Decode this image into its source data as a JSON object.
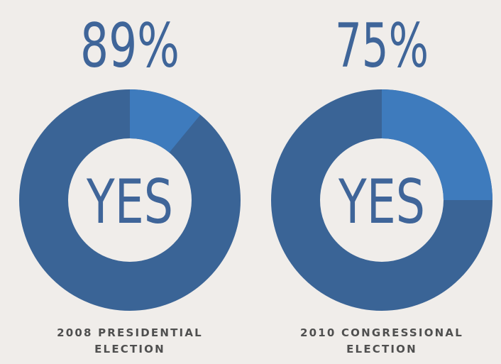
{
  "colors": {
    "background": "#f0edea",
    "yes_slice": "#3e7bbd",
    "other_slice": "#3a6496",
    "text_blue": "#3f6599",
    "caption_text": "#4f4f4f"
  },
  "chart_data": [
    {
      "type": "pie",
      "style": "donut",
      "headline": "89%",
      "center_label": "YES",
      "caption_lines": [
        "2008 PRESIDENTIAL",
        "ELECTION"
      ],
      "slices": [
        {
          "label": "YES",
          "value": 89,
          "color": "#3a6496"
        },
        {
          "value": 11,
          "color": "#3e7bbd"
        }
      ]
    },
    {
      "type": "pie",
      "style": "donut",
      "headline": "75%",
      "center_label": "YES",
      "caption_lines": [
        "2010 CONGRESSIONAL",
        "ELECTION"
      ],
      "slices": [
        {
          "label": "YES",
          "value": 75,
          "color": "#3a6496"
        },
        {
          "value": 25,
          "color": "#3e7bbd"
        }
      ]
    }
  ]
}
